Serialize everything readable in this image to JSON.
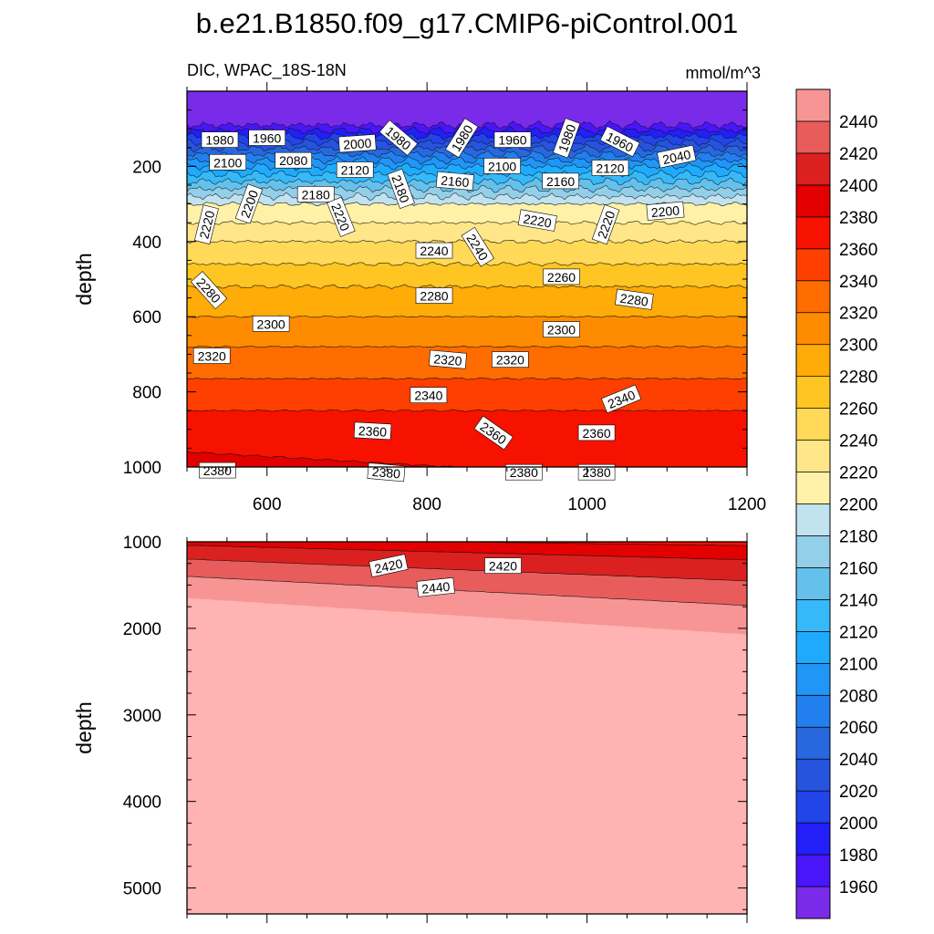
{
  "chart_data": {
    "type": "heatmap",
    "title": "b.e21.B1850.f09_g17.CMIP6-piControl.001",
    "variable_label": "DIC, WPAC_18S-18N",
    "units": "mmol/m^3",
    "ylabel": "depth",
    "xlabel": "",
    "xlim": [
      500,
      1200
    ],
    "x_ticks": [
      600,
      800,
      1000,
      1200
    ],
    "colorbar": {
      "min": 1940,
      "max": 2460,
      "step": 20,
      "labels": [
        1960,
        1980,
        2000,
        2020,
        2040,
        2060,
        2080,
        2100,
        2120,
        2140,
        2160,
        2180,
        2200,
        2220,
        2240,
        2260,
        2280,
        2300,
        2320,
        2340,
        2360,
        2380,
        2400,
        2420,
        2440
      ]
    },
    "panels": [
      {
        "name": "upper",
        "ylim": [
          0,
          1000
        ],
        "y_ticks": [
          200,
          400,
          600,
          800,
          1000
        ],
        "contour_labels": [
          {
            "value": 1980,
            "x": 541,
            "depth": 130,
            "angle": 0
          },
          {
            "value": 1960,
            "x": 600,
            "depth": 125,
            "angle": 0
          },
          {
            "value": 2000,
            "x": 713,
            "depth": 140,
            "angle": -4
          },
          {
            "value": 1980,
            "x": 764,
            "depth": 125,
            "angle": 40
          },
          {
            "value": 1980,
            "x": 844,
            "depth": 125,
            "angle": -58
          },
          {
            "value": 1960,
            "x": 907,
            "depth": 130,
            "angle": 0
          },
          {
            "value": 1980,
            "x": 975,
            "depth": 125,
            "angle": -70
          },
          {
            "value": 1960,
            "x": 1041,
            "depth": 135,
            "angle": 27
          },
          {
            "value": 2040,
            "x": 1112,
            "depth": 175,
            "angle": -12
          },
          {
            "value": 2100,
            "x": 551,
            "depth": 190,
            "angle": 0
          },
          {
            "value": 2080,
            "x": 633,
            "depth": 185,
            "angle": 0
          },
          {
            "value": 2120,
            "x": 710,
            "depth": 210,
            "angle": 0
          },
          {
            "value": 2100,
            "x": 894,
            "depth": 200,
            "angle": 0
          },
          {
            "value": 2120,
            "x": 1029,
            "depth": 205,
            "angle": 0
          },
          {
            "value": 2180,
            "x": 767,
            "depth": 260,
            "angle": 70
          },
          {
            "value": 2160,
            "x": 835,
            "depth": 240,
            "angle": 5
          },
          {
            "value": 2160,
            "x": 967,
            "depth": 240,
            "angle": 0
          },
          {
            "value": 2180,
            "x": 661,
            "depth": 275,
            "angle": 0
          },
          {
            "value": 2200,
            "x": 578,
            "depth": 300,
            "angle": -70
          },
          {
            "value": 2220,
            "x": 525,
            "depth": 355,
            "angle": -76
          },
          {
            "value": 2220,
            "x": 692,
            "depth": 335,
            "angle": 68
          },
          {
            "value": 2220,
            "x": 938,
            "depth": 345,
            "angle": 10
          },
          {
            "value": 2220,
            "x": 1024,
            "depth": 355,
            "angle": -70
          },
          {
            "value": 2200,
            "x": 1098,
            "depth": 320,
            "angle": -5
          },
          {
            "value": 2240,
            "x": 809,
            "depth": 425,
            "angle": 0
          },
          {
            "value": 2240,
            "x": 863,
            "depth": 415,
            "angle": 58
          },
          {
            "value": 2260,
            "x": 968,
            "depth": 495,
            "angle": 0
          },
          {
            "value": 2280,
            "x": 527,
            "depth": 530,
            "angle": 48
          },
          {
            "value": 2280,
            "x": 809,
            "depth": 545,
            "angle": 0
          },
          {
            "value": 2280,
            "x": 1059,
            "depth": 555,
            "angle": 8
          },
          {
            "value": 2300,
            "x": 605,
            "depth": 620,
            "angle": 0
          },
          {
            "value": 2300,
            "x": 968,
            "depth": 635,
            "angle": 0
          },
          {
            "value": 2320,
            "x": 531,
            "depth": 705,
            "angle": 0
          },
          {
            "value": 2320,
            "x": 826,
            "depth": 715,
            "angle": 5
          },
          {
            "value": 2320,
            "x": 904,
            "depth": 715,
            "angle": 0
          },
          {
            "value": 2340,
            "x": 802,
            "depth": 810,
            "angle": 0
          },
          {
            "value": 2340,
            "x": 1043,
            "depth": 820,
            "angle": -22
          },
          {
            "value": 2360,
            "x": 732,
            "depth": 905,
            "angle": 3
          },
          {
            "value": 2360,
            "x": 883,
            "depth": 910,
            "angle": 35
          },
          {
            "value": 2360,
            "x": 1012,
            "depth": 910,
            "angle": 0
          },
          {
            "value": 2380,
            "x": 538,
            "depth": 1010,
            "angle": 0
          },
          {
            "value": 2380,
            "x": 749,
            "depth": 1015,
            "angle": 5
          },
          {
            "value": 2380,
            "x": 921,
            "depth": 1015,
            "angle": 0
          },
          {
            "value": 2380,
            "x": 1012,
            "depth": 1015,
            "angle": 0
          }
        ]
      },
      {
        "name": "lower",
        "ylim": [
          1000,
          5300
        ],
        "y_ticks": [
          1000,
          2000,
          3000,
          4000,
          5000
        ],
        "contour_labels": [
          {
            "value": 2420,
            "x": 752,
            "depth": 1280,
            "angle": -12
          },
          {
            "value": 2420,
            "x": 895,
            "depth": 1280,
            "angle": 0
          },
          {
            "value": 2440,
            "x": 811,
            "depth": 1530,
            "angle": -6
          }
        ]
      }
    ]
  }
}
